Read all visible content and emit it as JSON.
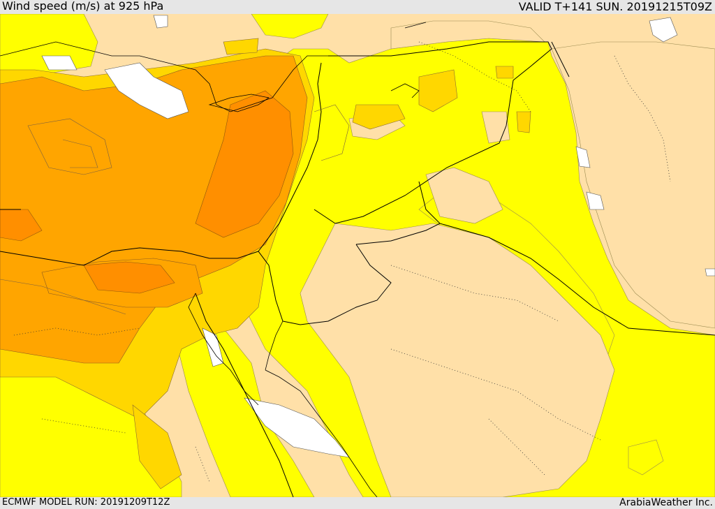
{
  "header": {
    "title": "Wind speed (m/s) at 925 hPa",
    "valid": "VALID T+141 SUN. 20191215T09Z"
  },
  "footer": {
    "model_run": "ECMWF MODEL RUN: 20191209T12Z",
    "credit": "ArabiaWeather Inc."
  },
  "map": {
    "field": "wind speed",
    "level": "925 hPa",
    "units": "m/s",
    "colors": {
      "sea_calm": "#ffffff",
      "land_calm": "#ffe0a8",
      "band_yellow": "#ffff00",
      "band_gold": "#ffd700",
      "band_orange": "#ffa500",
      "band_dark_orange": "#ff8c00",
      "contour": "#7a6040",
      "border": "#000000",
      "admin_border": "#333333"
    }
  }
}
